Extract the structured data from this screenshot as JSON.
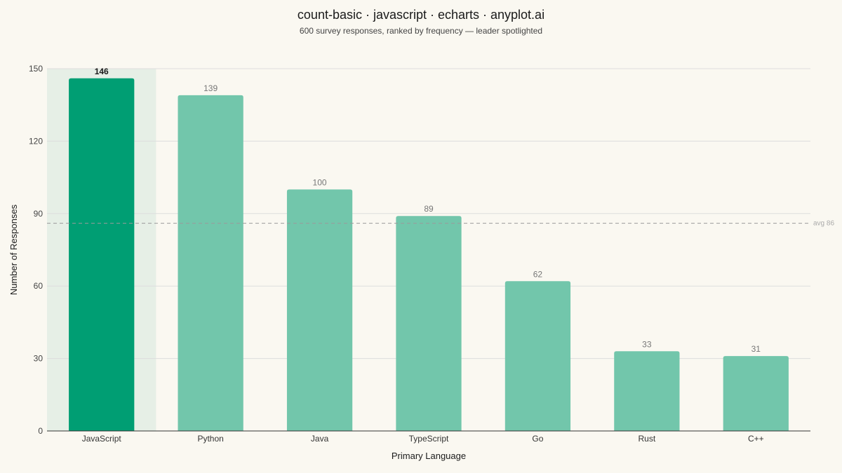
{
  "chart_data": {
    "type": "bar",
    "title": "count-basic · javascript · echarts · anyplot.ai",
    "subtitle": "600 survey responses, ranked by frequency — leader spotlighted",
    "xlabel": "Primary Language",
    "ylabel": "Number of Responses",
    "categories": [
      "JavaScript",
      "Python",
      "Java",
      "TypeScript",
      "Go",
      "Rust",
      "C++"
    ],
    "values": [
      146,
      139,
      100,
      89,
      62,
      33,
      31
    ],
    "ylim": [
      0,
      150
    ],
    "yticks": [
      0,
      30,
      60,
      90,
      120,
      150
    ],
    "grid": true,
    "highlight_index": 0,
    "average": {
      "value": 86,
      "label": "avg 86"
    },
    "colors": {
      "leader": "#009E73",
      "bar": "#72C6AB",
      "spotlight": "#E6EFE6",
      "grid": "#DDDDDD",
      "avg_line": "#9a9a9a",
      "axis": "#333333"
    }
  }
}
